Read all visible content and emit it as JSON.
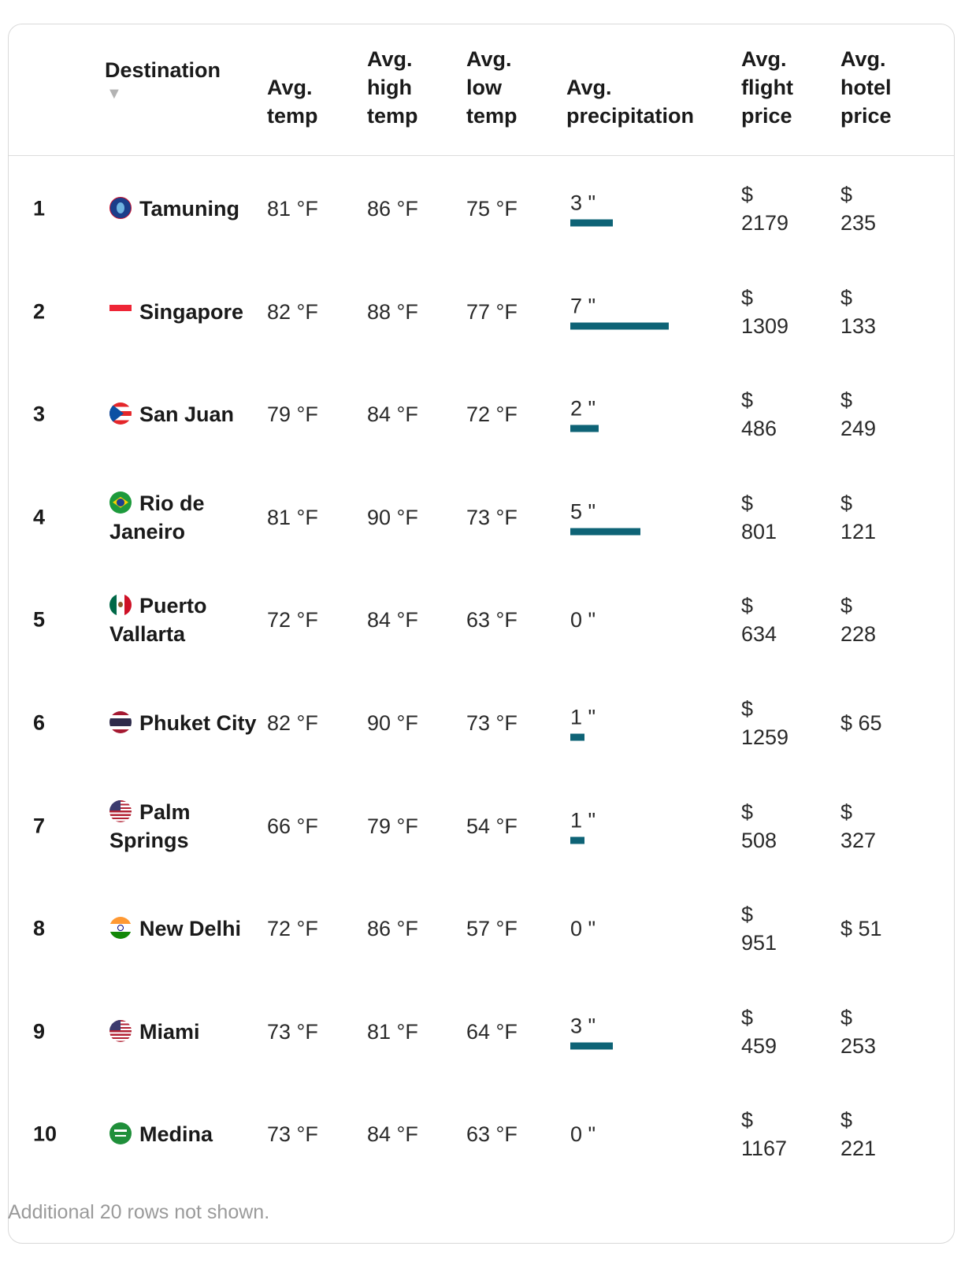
{
  "table": {
    "headers": {
      "destination": "Destination",
      "avg_temp": "Avg.\ntemp",
      "avg_high": "Avg.\nhigh\ntemp",
      "avg_low": "Avg.\nlow\ntemp",
      "avg_precip": "Avg.\nprecipitation",
      "avg_flight": "Avg.\nflight\nprice",
      "avg_hotel": "Avg.\nhotel\nprice"
    },
    "sort_icon": "sort-descending-triangle-icon",
    "bar_color": "#0e6376",
    "rows": [
      {
        "rank": "1",
        "destination": "Tamuning",
        "flag": "guam-flag-icon",
        "temp": "81 °F",
        "high": "86 °F",
        "low": "75 °F",
        "precip": "3 \"",
        "precip_value": 3,
        "flight": "$\n2179",
        "hotel": "$\n235"
      },
      {
        "rank": "2",
        "destination": "Singapore",
        "flag": "singapore-flag-icon",
        "temp": "82 °F",
        "high": "88 °F",
        "low": "77 °F",
        "precip": "7 \"",
        "precip_value": 7,
        "flight": "$\n1309",
        "hotel": "$\n133"
      },
      {
        "rank": "3",
        "destination": "San Juan",
        "flag": "puerto-rico-flag-icon",
        "temp": "79 °F",
        "high": "84 °F",
        "low": "72 °F",
        "precip": "2 \"",
        "precip_value": 2,
        "flight": "$\n486",
        "hotel": "$\n249"
      },
      {
        "rank": "4",
        "destination": "Rio de Janeiro",
        "flag": "brazil-flag-icon",
        "temp": "81 °F",
        "high": "90 °F",
        "low": "73 °F",
        "precip": "5 \"",
        "precip_value": 5,
        "flight": "$\n801",
        "hotel": "$\n121"
      },
      {
        "rank": "5",
        "destination": "Puerto Vallarta",
        "flag": "mexico-flag-icon",
        "temp": "72 °F",
        "high": "84 °F",
        "low": "63 °F",
        "precip": "0 \"",
        "precip_value": 0,
        "flight": "$\n634",
        "hotel": "$\n228"
      },
      {
        "rank": "6",
        "destination": "Phuket City",
        "flag": "thailand-flag-icon",
        "temp": "82 °F",
        "high": "90 °F",
        "low": "73 °F",
        "precip": "1 \"",
        "precip_value": 1,
        "flight": "$\n1259",
        "hotel": "$ 65"
      },
      {
        "rank": "7",
        "destination": "Palm Springs",
        "flag": "usa-flag-icon",
        "temp": "66 °F",
        "high": "79 °F",
        "low": "54 °F",
        "precip": "1 \"",
        "precip_value": 1,
        "flight": "$\n508",
        "hotel": "$\n327"
      },
      {
        "rank": "8",
        "destination": "New Delhi",
        "flag": "india-flag-icon",
        "temp": "72 °F",
        "high": "86 °F",
        "low": "57 °F",
        "precip": "0 \"",
        "precip_value": 0,
        "flight": "$\n951",
        "hotel": "$ 51"
      },
      {
        "rank": "9",
        "destination": "Miami",
        "flag": "usa-flag-icon",
        "temp": "73 °F",
        "high": "81 °F",
        "low": "64 °F",
        "precip": "3 \"",
        "precip_value": 3,
        "flight": "$\n459",
        "hotel": "$\n253"
      },
      {
        "rank": "10",
        "destination": "Medina",
        "flag": "saudi-arabia-flag-icon",
        "temp": "73 °F",
        "high": "84 °F",
        "low": "63 °F",
        "precip": "0 \"",
        "precip_value": 0,
        "flight": "$\n1167",
        "hotel": "$\n221"
      }
    ]
  },
  "footer": "Additional 20 rows not shown."
}
